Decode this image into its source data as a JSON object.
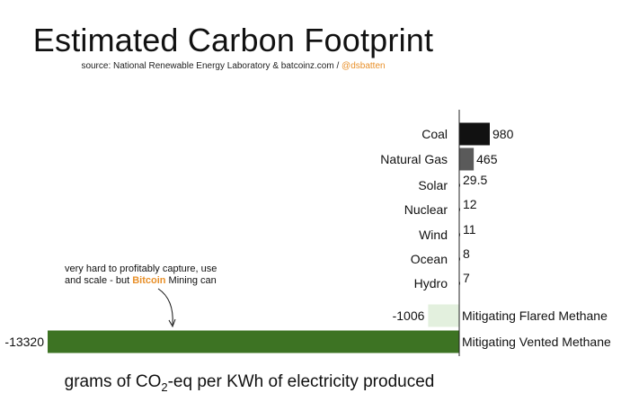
{
  "title": "Estimated Carbon Footprint",
  "source_text": "source: National Renewable Energy Laboratory & batcoinz.com / ",
  "source_handle": "@dsbatten",
  "annotation": {
    "line1": "very hard to profitably capture, use",
    "line2_pre": "and scale - but ",
    "line2_highlight": "Bitcoin",
    "line2_post": " Mining can"
  },
  "xlabel_pre": "grams of CO",
  "xlabel_sub": "2",
  "xlabel_post": "-eq per KWh of electricity produced",
  "colors": {
    "coal": "#111111",
    "natural_gas": "#5a5a5a",
    "flared": "#e3f0de",
    "vented": "#3d7323",
    "flared_text": "#7ab356",
    "vented_text": "#3d7323",
    "accent": "#e8902a"
  },
  "chart_data": {
    "type": "bar",
    "orientation": "horizontal",
    "title": "Estimated Carbon Footprint",
    "xlabel": "grams of CO₂-eq per KWh of electricity produced",
    "categories": [
      "Coal",
      "Natural Gas",
      "Solar",
      "Nuclear",
      "Wind",
      "Ocean",
      "Hydro",
      "Mitigating Flared Methane",
      "Mitigating Vented Methane"
    ],
    "values": [
      980,
      465,
      29.5,
      12,
      11,
      8,
      7,
      -1006,
      -13320
    ],
    "value_labels": [
      "980",
      "465",
      "29.5",
      "12",
      "11",
      "8",
      "7",
      "-1006",
      "-13320"
    ],
    "xlim": [
      -13320,
      980
    ],
    "grid": false,
    "legend": "none"
  }
}
